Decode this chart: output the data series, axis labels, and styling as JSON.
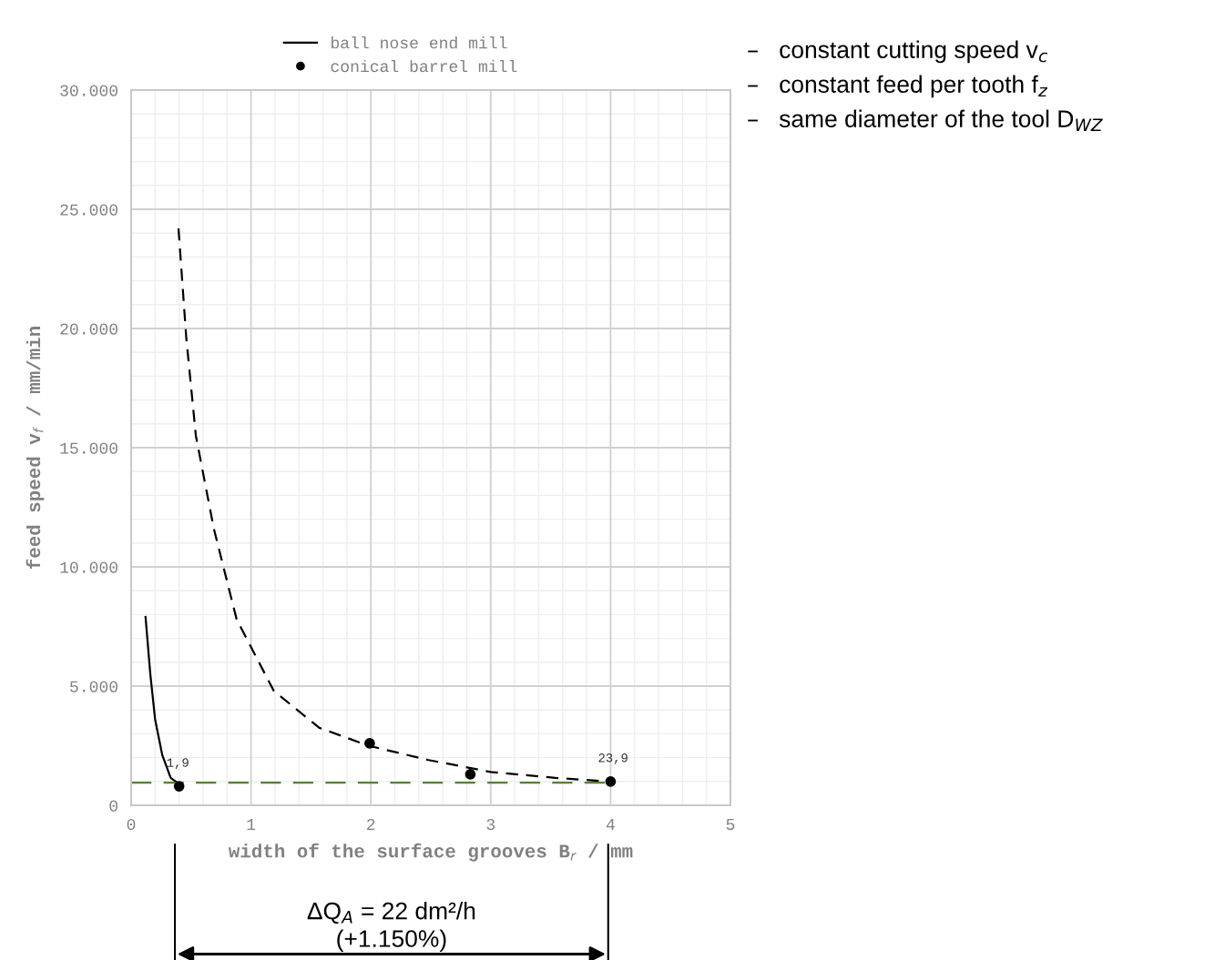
{
  "chart_data": {
    "type": "line",
    "xlabel": "width of the surface grooves B$_{r}$ / mm",
    "ylabel": "feed speed v$_{f}$ / mm/min",
    "xlim": [
      0,
      5
    ],
    "xticks": [
      0,
      1,
      2,
      3,
      4,
      5
    ],
    "ylim": [
      0,
      30000
    ],
    "yticks": [
      {
        "value": 0,
        "label": "0"
      },
      {
        "value": 5000,
        "label": "5.000"
      },
      {
        "value": 10000,
        "label": "10.000"
      },
      {
        "value": 15000,
        "label": "15.000"
      },
      {
        "value": 20000,
        "label": "20.000"
      },
      {
        "value": 25000,
        "label": "25.000"
      },
      {
        "value": 30000,
        "label": "30.000"
      }
    ],
    "grid": true,
    "legend": "top",
    "series": [
      {
        "name": "ball nose end mill",
        "color": "#000000",
        "line_style": "solid",
        "x": [
          0.12,
          0.16,
          0.2,
          0.26,
          0.33,
          0.4
        ],
        "values": [
          7900,
          5500,
          3600,
          2100,
          1150,
          900
        ]
      },
      {
        "name": "conical barrel mill",
        "type": "scatter",
        "color": "#000000",
        "marker": "circle",
        "x": [
          0.4,
          1.99,
          2.83,
          4.0
        ],
        "values": [
          800,
          2600,
          1300,
          1000
        ]
      },
      {
        "color": "#000000",
        "line_style": "dashed",
        "x": [
          0.395,
          0.46,
          0.54,
          0.69,
          0.88,
          1.19,
          1.57,
          1.98,
          2.48,
          3.0,
          3.54,
          3.98
        ],
        "values": [
          24200,
          19600,
          15500,
          11600,
          7800,
          4800,
          3250,
          2500,
          1900,
          1400,
          1150,
          1000
        ]
      },
      {
        "color": "#548235",
        "line_style": "dashed",
        "x": [
          0,
          4.0
        ],
        "values": [
          950,
          950
        ]
      }
    ],
    "annotations": [
      "–   constant cutting speed v$_{c}$",
      "–   constant feed per tooth f$_{z}$",
      "–   same diameter of the tool D$_{WZ}$",
      "ΔQ$_{A}$ = 22 dm²/h\n(+1.150%)",
      {
        "text": "1,9",
        "x": 0.4,
        "y": 800
      },
      {
        "text": "23,9",
        "x": 4.0,
        "y": 1000
      }
    ]
  }
}
